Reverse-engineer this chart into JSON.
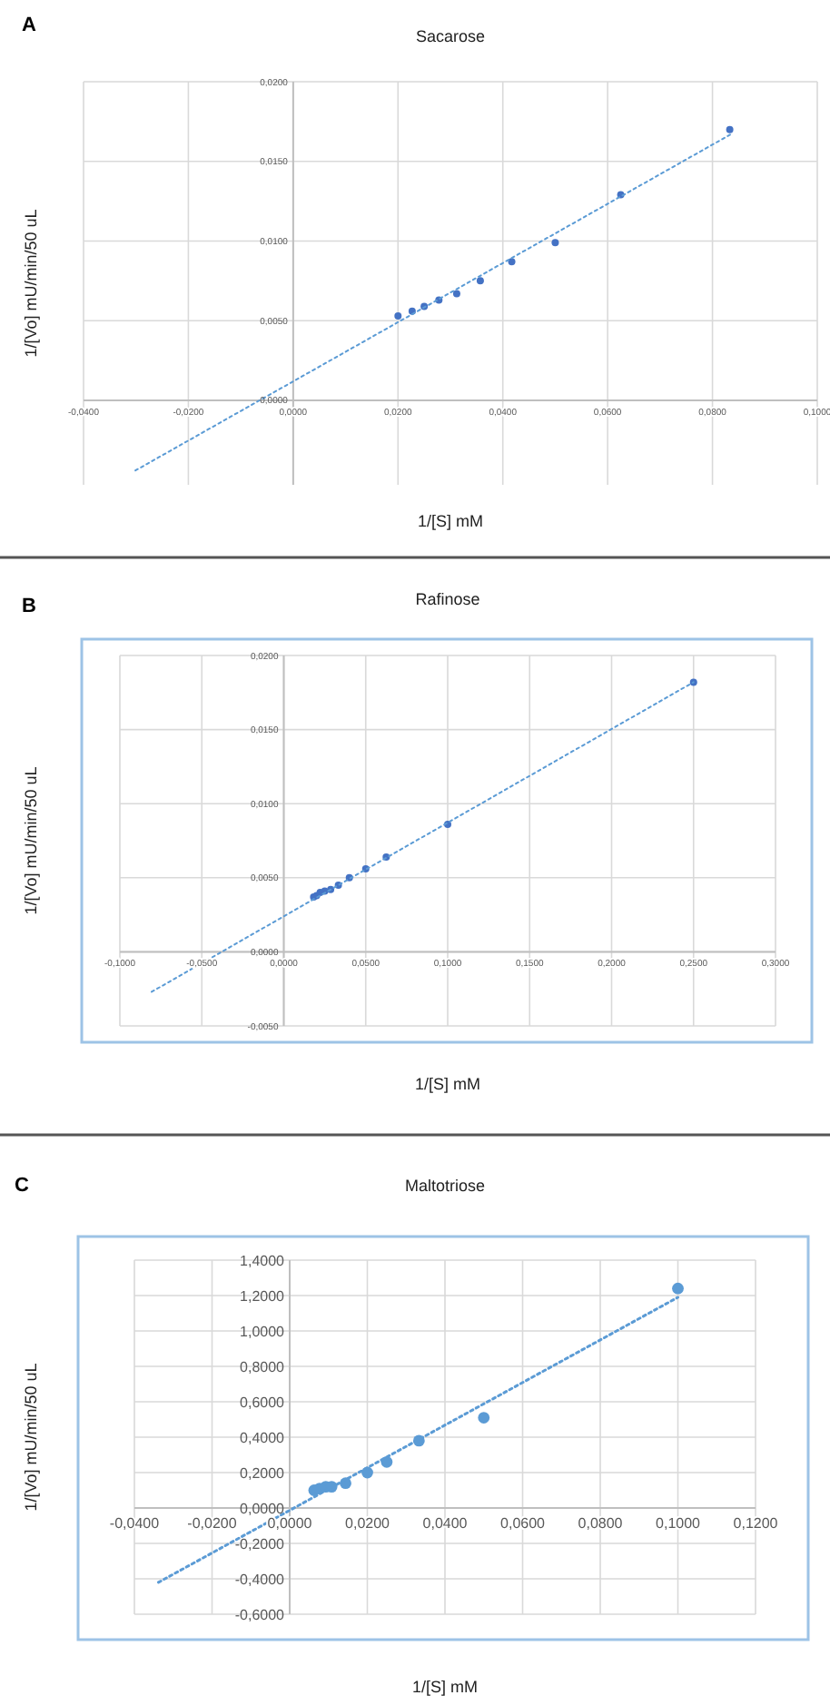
{
  "chart_data": [
    {
      "type": "scatter",
      "title": "Sacarose",
      "xlabel": "1/[S] mM",
      "ylabel": "1/[Vo] mU/min/50 uL",
      "annotations": [
        "A"
      ],
      "grid": true,
      "xlim": [
        -0.04,
        0.1
      ],
      "ylim": [
        -0.0053,
        0.02
      ],
      "xticks": [
        {
          "value": -0.04,
          "label": "-0,0400"
        },
        {
          "value": -0.02,
          "label": "-0,0200"
        },
        {
          "value": 0,
          "label": "0,0000"
        },
        {
          "value": 0.02,
          "label": "0,0200"
        },
        {
          "value": 0.04,
          "label": "0,0400"
        },
        {
          "value": 0.06,
          "label": "0,0600"
        },
        {
          "value": 0.08,
          "label": "0,0800"
        },
        {
          "value": 0.1,
          "label": "0,1000"
        }
      ],
      "yticks": [
        {
          "value": 0,
          "label": "0,0000"
        },
        {
          "value": 0.005,
          "label": "0,0050"
        },
        {
          "value": 0.01,
          "label": "0,0100"
        },
        {
          "value": 0.015,
          "label": "0,0150"
        },
        {
          "value": 0.02,
          "label": "0,0200"
        }
      ],
      "series": [
        {
          "marker": "circle",
          "color": "#4472c4",
          "x": [
            0.02,
            0.0227,
            0.025,
            0.0278,
            0.0312,
            0.0357,
            0.0417,
            0.05,
            0.0625,
            0.0833
          ],
          "values": [
            0.0053,
            0.0056,
            0.0059,
            0.0063,
            0.0067,
            0.0075,
            0.0087,
            0.0099,
            0.0129,
            0.017
          ]
        },
        {
          "type": "line",
          "color": "#5b9bd5",
          "line_style": "dotted",
          "x": [
            -0.0301,
            0.0835
          ],
          "values": [
            -0.0044,
            0.0167
          ]
        }
      ]
    },
    {
      "type": "scatter",
      "title": "Rafinose",
      "xlabel": "1/[S] mM",
      "ylabel": "1/[Vo] mU/min/50 uL",
      "annotations": [
        "B"
      ],
      "grid": true,
      "xlim": [
        -0.1,
        0.3
      ],
      "ylim": [
        -0.005,
        0.02
      ],
      "xticks": [
        {
          "value": -0.1,
          "label": "-0,1000"
        },
        {
          "value": -0.05,
          "label": "-0,0500"
        },
        {
          "value": 0,
          "label": "0,0000"
        },
        {
          "value": 0.05,
          "label": "0,0500"
        },
        {
          "value": 0.1,
          "label": "0,1000"
        },
        {
          "value": 0.15,
          "label": "0,1500"
        },
        {
          "value": 0.2,
          "label": "0,2000"
        },
        {
          "value": 0.25,
          "label": "0,2500"
        },
        {
          "value": 0.3,
          "label": "0,3000"
        }
      ],
      "yticks": [
        {
          "value": -0.005,
          "label": "-0,0050"
        },
        {
          "value": 0,
          "label": "0,0000"
        },
        {
          "value": 0.005,
          "label": "0,0050"
        },
        {
          "value": 0.01,
          "label": "0,0100"
        },
        {
          "value": 0.015,
          "label": "0,0150"
        },
        {
          "value": 0.02,
          "label": "0,0200"
        }
      ],
      "series": [
        {
          "marker": "circle",
          "color": "#4472c4",
          "x": [
            0.0182,
            0.02,
            0.0222,
            0.025,
            0.0286,
            0.0333,
            0.04,
            0.05,
            0.0625,
            0.1,
            0.25
          ],
          "values": [
            0.0037,
            0.0038,
            0.004,
            0.0041,
            0.0042,
            0.0045,
            0.005,
            0.0056,
            0.0064,
            0.0086,
            0.0182
          ]
        },
        {
          "type": "line",
          "color": "#5b9bd5",
          "line_style": "dotted",
          "x": [
            -0.0806,
            0.25
          ],
          "values": [
            -0.0027,
            0.0182
          ]
        }
      ]
    },
    {
      "type": "scatter",
      "title": "Maltotriose",
      "xlabel": "1/[S] mM",
      "ylabel": "1/[Vo] mU/min/50 uL",
      "annotations": [
        "C"
      ],
      "grid": true,
      "xlim": [
        -0.04,
        0.12
      ],
      "ylim": [
        -0.6,
        1.4
      ],
      "xticks": [
        {
          "value": -0.04,
          "label": "-0,0400"
        },
        {
          "value": -0.02,
          "label": "-0,0200"
        },
        {
          "value": 0,
          "label": "0,0000"
        },
        {
          "value": 0.02,
          "label": "0,0200"
        },
        {
          "value": 0.04,
          "label": "0,0400"
        },
        {
          "value": 0.06,
          "label": "0,0600"
        },
        {
          "value": 0.08,
          "label": "0,0800"
        },
        {
          "value": 0.1,
          "label": "0,1000"
        },
        {
          "value": 0.12,
          "label": "0,1200"
        }
      ],
      "yticks": [
        {
          "value": -0.6,
          "label": "-0,6000"
        },
        {
          "value": -0.4,
          "label": "-0,4000"
        },
        {
          "value": -0.2,
          "label": "-0,2000"
        },
        {
          "value": 0,
          "label": "0,0000"
        },
        {
          "value": 0.2,
          "label": "0,2000"
        },
        {
          "value": 0.4,
          "label": "0,4000"
        },
        {
          "value": 0.6,
          "label": "0,6000"
        },
        {
          "value": 0.8,
          "label": "0,8000"
        },
        {
          "value": 1.0,
          "label": "1,0000"
        },
        {
          "value": 1.2,
          "label": "1,2000"
        },
        {
          "value": 1.4,
          "label": "1,4000"
        }
      ],
      "series": [
        {
          "marker": "circle",
          "color": "#5b9bd5",
          "x": [
            0.0063,
            0.0077,
            0.0093,
            0.0108,
            0.0144,
            0.02,
            0.025,
            0.0333,
            0.05,
            0.1
          ],
          "values": [
            0.1,
            0.11,
            0.12,
            0.12,
            0.14,
            0.2,
            0.26,
            0.38,
            0.51,
            1.24
          ]
        },
        {
          "type": "line",
          "color": "#5b9bd5",
          "line_style": "dotted",
          "x": [
            -0.0338,
            0.1
          ],
          "values": [
            -0.42,
            1.19
          ]
        }
      ]
    }
  ]
}
